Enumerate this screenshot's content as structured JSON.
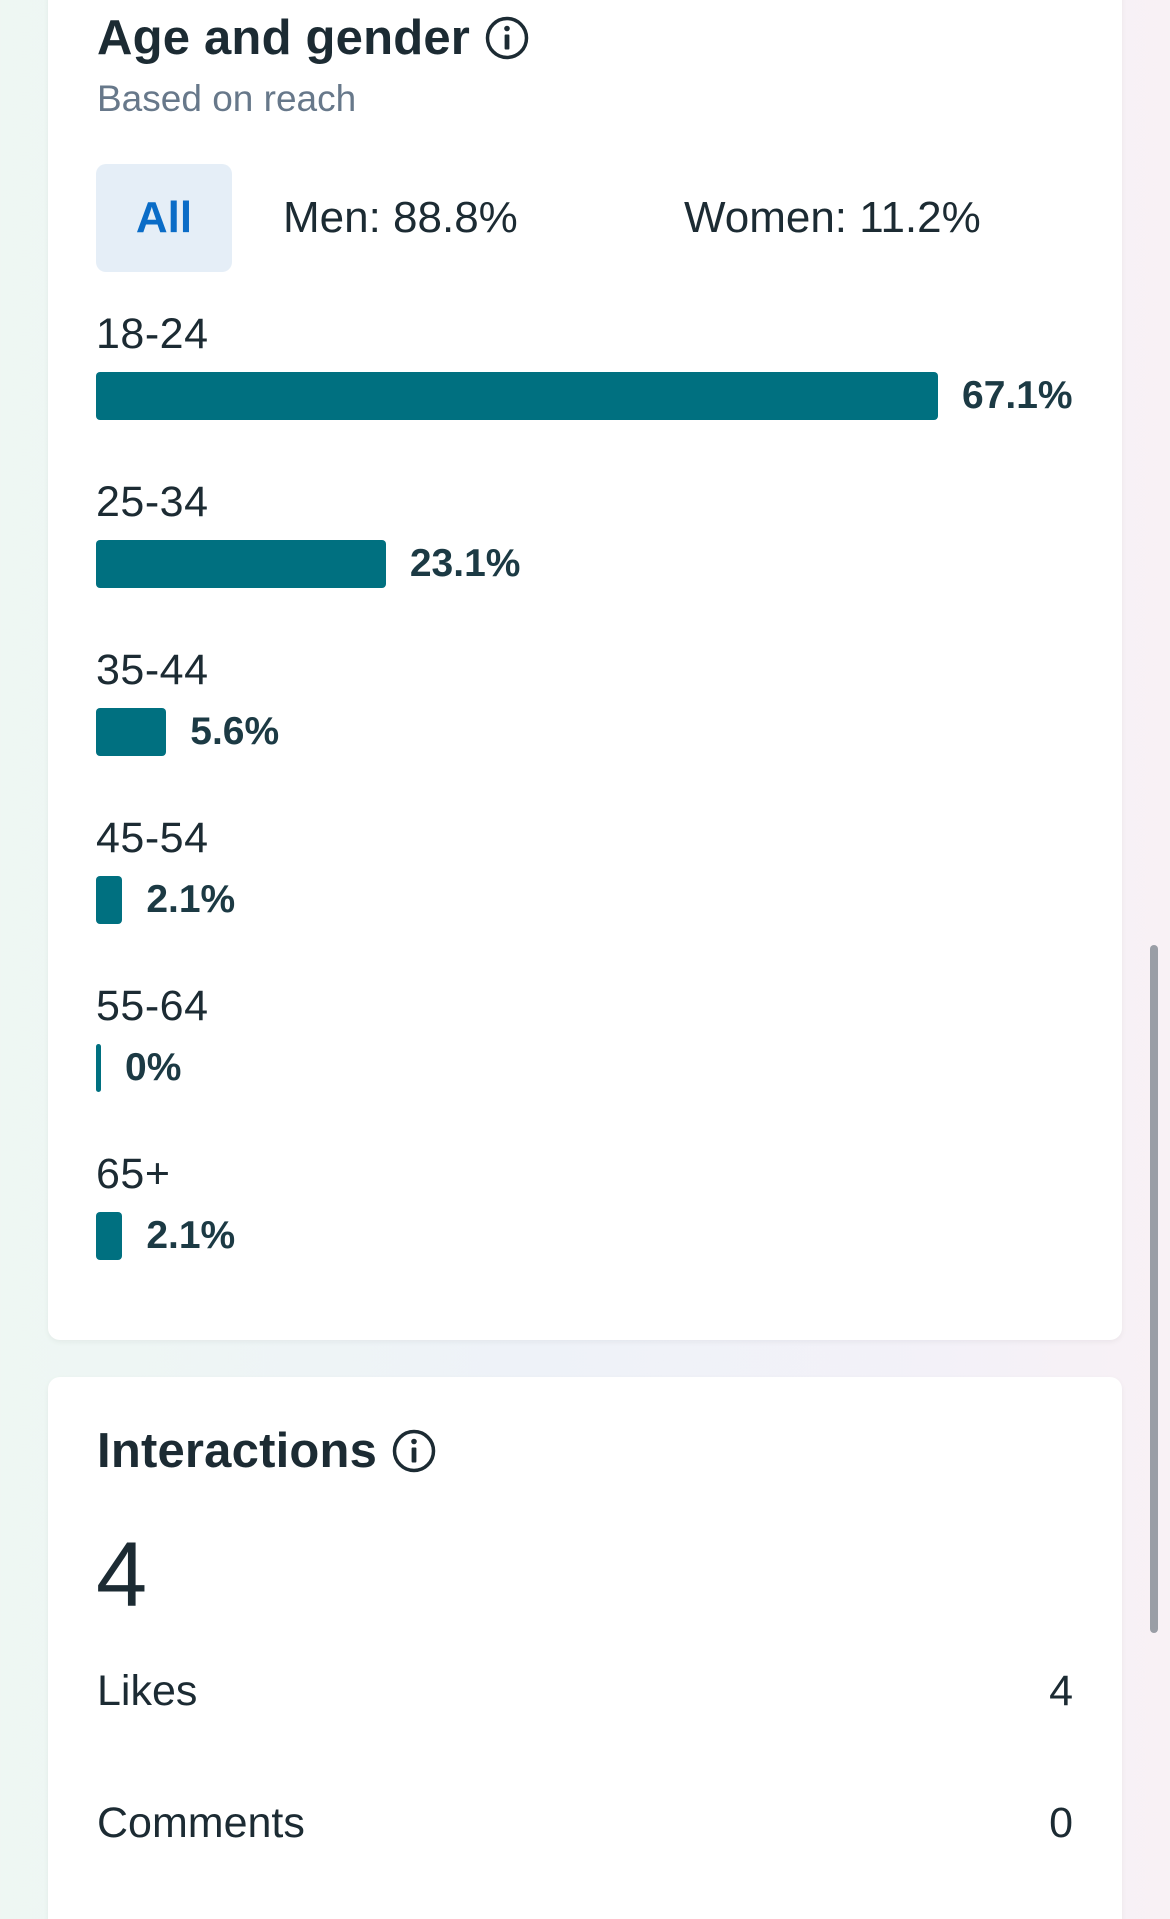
{
  "age_gender": {
    "title": "Age and gender",
    "info_icon": "info-icon",
    "subtitle": "Based on reach",
    "tabs": [
      {
        "label": "All",
        "selected": true
      },
      {
        "label": "Men: 88.8%",
        "selected": false
      },
      {
        "label": "Women: 11.2%",
        "selected": false
      }
    ],
    "chart_data": {
      "type": "bar",
      "orientation": "horizontal",
      "categories": [
        "18-24",
        "25-34",
        "35-44",
        "45-54",
        "55-64",
        "65+"
      ],
      "values": [
        67.1,
        23.1,
        5.6,
        2.1,
        0,
        2.1
      ],
      "value_labels": [
        "67.1%",
        "23.1%",
        "5.6%",
        "2.1%",
        "0%",
        "2.1%"
      ],
      "unit": "%",
      "xlim": [
        0,
        67.1
      ],
      "color": "#007080"
    }
  },
  "interactions": {
    "title": "Interactions",
    "info_icon": "info-icon",
    "total": "4",
    "metrics": [
      {
        "label": "Likes",
        "value": "4"
      },
      {
        "label": "Comments",
        "value": "0"
      }
    ]
  },
  "colors": {
    "accent": "#0a6cc7",
    "bar": "#007080",
    "tab_selected_bg": "#e5eef7"
  }
}
